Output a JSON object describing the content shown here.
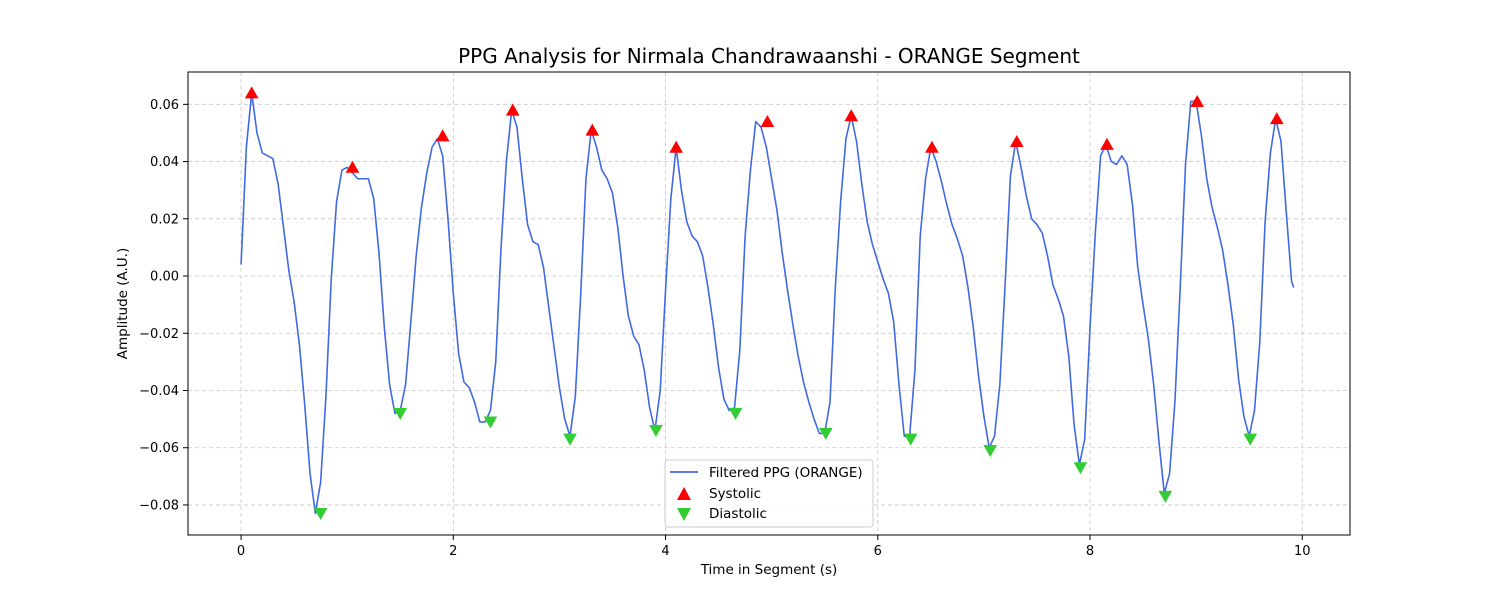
{
  "chart_data": {
    "type": "line",
    "title": "PPG Analysis for Nirmala Chandrawaanshi - ORANGE Segment",
    "xlabel": "Time in Segment (s)",
    "ylabel": "Amplitude (A.U.)",
    "xlim": [
      -0.5,
      10.45
    ],
    "ylim": [
      -0.0905,
      0.0713
    ],
    "xticks": [
      0,
      2,
      4,
      6,
      8,
      10
    ],
    "xtick_labels": [
      "0",
      "2",
      "4",
      "6",
      "8",
      "10"
    ],
    "yticks": [
      -0.08,
      -0.06,
      -0.04,
      -0.02,
      0.0,
      0.02,
      0.04,
      0.06
    ],
    "ytick_labels": [
      "−0.08",
      "−0.06",
      "−0.04",
      "−0.02",
      "0.00",
      "0.02",
      "0.04",
      "0.06"
    ],
    "grid": true,
    "legend_position": "bottom-center",
    "series": [
      {
        "name": "Filtered PPG (ORANGE)",
        "kind": "line",
        "color": "#4169e1",
        "x": [
          0.0,
          0.05,
          0.1,
          0.15,
          0.2,
          0.25,
          0.3,
          0.35,
          0.4,
          0.45,
          0.5,
          0.55,
          0.6,
          0.65,
          0.7,
          0.75,
          0.8,
          0.85,
          0.9,
          0.95,
          1.0,
          1.05,
          1.1,
          1.15,
          1.2,
          1.25,
          1.3,
          1.35,
          1.4,
          1.45,
          1.5,
          1.55,
          1.6,
          1.65,
          1.7,
          1.75,
          1.8,
          1.85,
          1.9,
          1.95,
          2.0,
          2.05,
          2.1,
          2.15,
          2.2,
          2.25,
          2.3,
          2.35,
          2.4,
          2.45,
          2.5,
          2.55,
          2.6,
          2.65,
          2.7,
          2.75,
          2.8,
          2.85,
          2.9,
          2.95,
          3.0,
          3.05,
          3.1,
          3.15,
          3.2,
          3.25,
          3.3,
          3.35,
          3.4,
          3.45,
          3.5,
          3.55,
          3.6,
          3.65,
          3.7,
          3.75,
          3.8,
          3.85,
          3.9,
          3.95,
          4.0,
          4.05,
          4.1,
          4.15,
          4.2,
          4.25,
          4.3,
          4.35,
          4.4,
          4.45,
          4.5,
          4.55,
          4.6,
          4.65,
          4.7,
          4.75,
          4.8,
          4.85,
          4.9,
          4.95,
          5.0,
          5.05,
          5.1,
          5.15,
          5.2,
          5.25,
          5.3,
          5.35,
          5.4,
          5.45,
          5.5,
          5.55,
          5.6,
          5.65,
          5.7,
          5.75,
          5.8,
          5.85,
          5.9,
          5.95,
          6.0,
          6.05,
          6.1,
          6.15,
          6.2,
          6.25,
          6.3,
          6.35,
          6.4,
          6.45,
          6.5,
          6.55,
          6.6,
          6.65,
          6.7,
          6.75,
          6.8,
          6.85,
          6.9,
          6.95,
          7.0,
          7.05,
          7.1,
          7.15,
          7.2,
          7.25,
          7.3,
          7.35,
          7.4,
          7.45,
          7.5,
          7.55,
          7.6,
          7.65,
          7.7,
          7.75,
          7.8,
          7.85,
          7.9,
          7.95,
          8.0,
          8.05,
          8.1,
          8.15,
          8.2,
          8.25,
          8.3,
          8.35,
          8.4,
          8.45,
          8.5,
          8.55,
          8.6,
          8.65,
          8.7,
          8.75,
          8.8,
          8.85,
          8.9,
          8.95,
          9.0,
          9.05,
          9.1,
          9.15,
          9.2,
          9.25,
          9.3,
          9.35,
          9.4,
          9.45,
          9.5,
          9.55,
          9.6,
          9.65,
          9.7,
          9.75,
          9.8,
          9.85,
          9.9,
          9.92
        ],
        "y": [
          0.004,
          0.045,
          0.064,
          0.05,
          0.043,
          0.042,
          0.041,
          0.032,
          0.017,
          0.002,
          -0.009,
          -0.024,
          -0.045,
          -0.069,
          -0.083,
          -0.072,
          -0.042,
          -0.001,
          0.026,
          0.037,
          0.038,
          0.036,
          0.034,
          0.034,
          0.034,
          0.027,
          0.008,
          -0.018,
          -0.038,
          -0.048,
          -0.047,
          -0.038,
          -0.016,
          0.007,
          0.024,
          0.036,
          0.045,
          0.048,
          0.042,
          0.02,
          -0.006,
          -0.027,
          -0.037,
          -0.039,
          -0.044,
          -0.051,
          -0.051,
          -0.047,
          -0.03,
          0.01,
          0.04,
          0.058,
          0.052,
          0.034,
          0.018,
          0.012,
          0.011,
          0.003,
          -0.011,
          -0.025,
          -0.039,
          -0.05,
          -0.056,
          -0.042,
          -0.007,
          0.034,
          0.051,
          0.045,
          0.037,
          0.034,
          0.029,
          0.017,
          0.0,
          -0.014,
          -0.021,
          -0.024,
          -0.033,
          -0.046,
          -0.054,
          -0.04,
          -0.005,
          0.027,
          0.045,
          0.03,
          0.019,
          0.014,
          0.012,
          0.007,
          -0.004,
          -0.017,
          -0.032,
          -0.043,
          -0.047,
          -0.046,
          -0.026,
          0.014,
          0.037,
          0.054,
          0.052,
          0.045,
          0.034,
          0.023,
          0.008,
          -0.005,
          -0.017,
          -0.028,
          -0.037,
          -0.044,
          -0.05,
          -0.055,
          -0.055,
          -0.044,
          -0.004,
          0.026,
          0.048,
          0.056,
          0.047,
          0.032,
          0.019,
          0.011,
          0.005,
          -0.001,
          -0.006,
          -0.016,
          -0.038,
          -0.056,
          -0.056,
          -0.033,
          0.014,
          0.034,
          0.045,
          0.04,
          0.033,
          0.025,
          0.018,
          0.013,
          0.007,
          -0.004,
          -0.018,
          -0.035,
          -0.049,
          -0.06,
          -0.056,
          -0.038,
          -0.003,
          0.035,
          0.047,
          0.038,
          0.028,
          0.02,
          0.018,
          0.015,
          0.007,
          -0.003,
          -0.008,
          -0.014,
          -0.028,
          -0.052,
          -0.066,
          -0.057,
          -0.018,
          0.015,
          0.042,
          0.046,
          0.04,
          0.039,
          0.042,
          0.039,
          0.025,
          0.003,
          -0.01,
          -0.022,
          -0.038,
          -0.058,
          -0.076,
          -0.069,
          -0.044,
          -0.004,
          0.039,
          0.061,
          0.061,
          0.049,
          0.034,
          0.024,
          0.017,
          0.009,
          -0.003,
          -0.017,
          -0.036,
          -0.049,
          -0.056,
          -0.047,
          -0.023,
          0.019,
          0.043,
          0.055,
          0.047,
          0.022,
          -0.002,
          -0.004
        ]
      },
      {
        "name": "Systolic",
        "kind": "marker",
        "marker": "triangle-up",
        "color": "#ff0000",
        "x": [
          0.1,
          1.05,
          1.9,
          2.56,
          3.31,
          4.1,
          4.96,
          5.75,
          6.51,
          7.31,
          8.16,
          9.01,
          9.76
        ],
        "y": [
          0.064,
          0.038,
          0.049,
          0.058,
          0.051,
          0.045,
          0.054,
          0.056,
          0.045,
          0.047,
          0.046,
          0.061,
          0.055
        ]
      },
      {
        "name": "Diastolic",
        "kind": "marker",
        "marker": "triangle-down",
        "color": "#32cd32",
        "x": [
          0.75,
          1.5,
          2.35,
          3.1,
          3.91,
          4.66,
          5.51,
          6.31,
          7.06,
          7.91,
          8.71,
          9.51
        ],
        "y": [
          -0.083,
          -0.048,
          -0.051,
          -0.057,
          -0.054,
          -0.048,
          -0.055,
          -0.057,
          -0.061,
          -0.067,
          -0.077,
          -0.057
        ]
      }
    ]
  }
}
